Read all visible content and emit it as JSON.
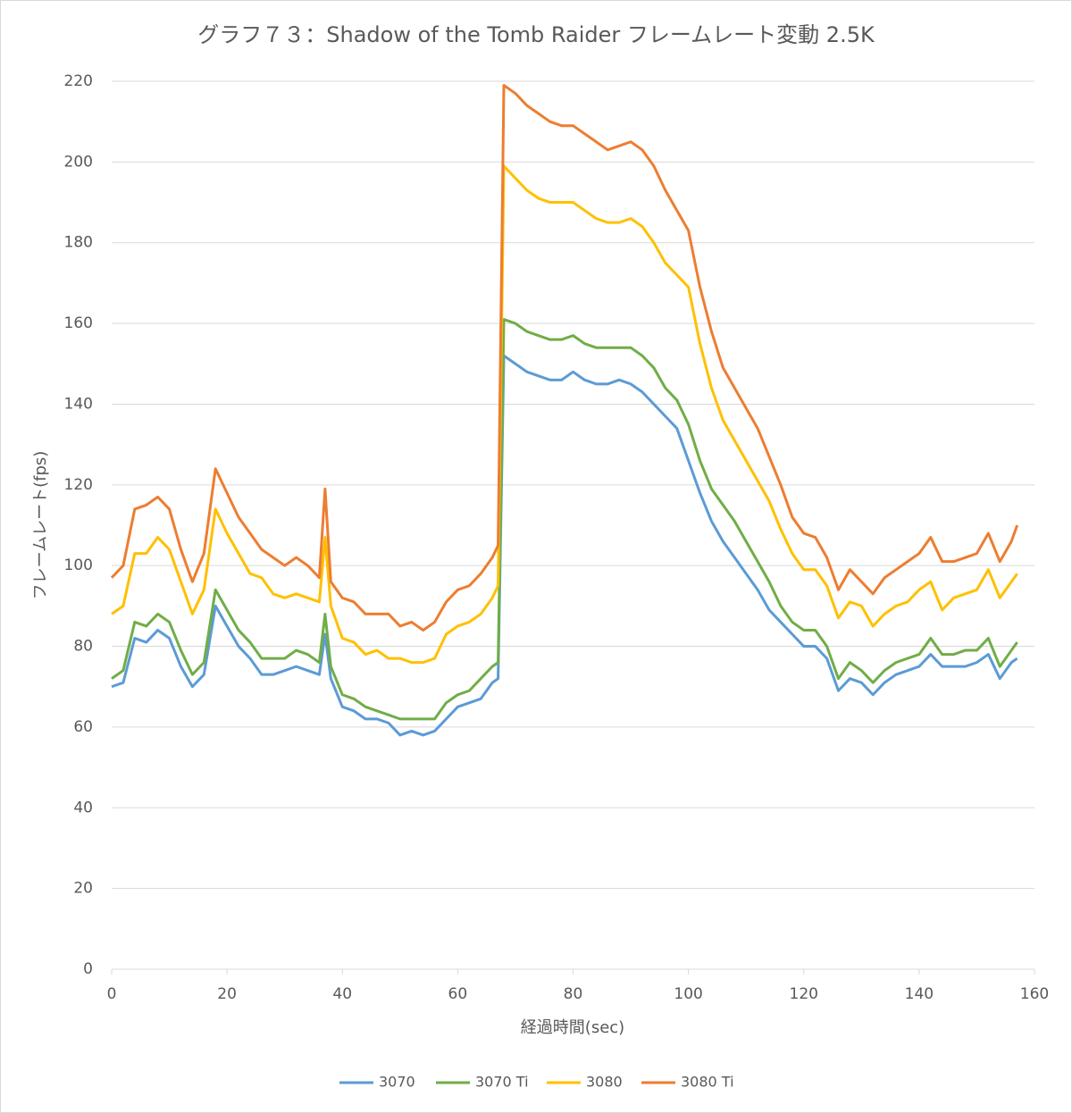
{
  "chart_data": {
    "type": "line",
    "title": "グラフ７３：Shadow of the Tomb Raider フレームレート変動 2.5K",
    "xlabel": "経過時間(sec)",
    "ylabel": "フレームレート(fps)",
    "x": [
      0,
      2,
      4,
      6,
      8,
      10,
      12,
      14,
      16,
      18,
      20,
      22,
      24,
      26,
      28,
      30,
      32,
      34,
      36,
      37,
      38,
      40,
      42,
      44,
      46,
      48,
      50,
      52,
      54,
      56,
      58,
      60,
      62,
      64,
      66,
      67,
      68,
      70,
      72,
      74,
      76,
      78,
      80,
      82,
      84,
      86,
      88,
      90,
      92,
      94,
      96,
      98,
      100,
      102,
      104,
      106,
      108,
      110,
      112,
      114,
      116,
      118,
      120,
      122,
      124,
      126,
      128,
      130,
      132,
      134,
      136,
      138,
      140,
      142,
      144,
      146,
      148,
      150,
      152,
      154,
      156,
      157
    ],
    "series": [
      {
        "name": "3070",
        "color": "#5b9bd5",
        "values": [
          70,
          71,
          82,
          81,
          84,
          82,
          75,
          70,
          73,
          90,
          85,
          80,
          77,
          73,
          73,
          74,
          75,
          74,
          73,
          83,
          72,
          65,
          64,
          62,
          62,
          61,
          58,
          59,
          58,
          59,
          62,
          65,
          66,
          67,
          71,
          72,
          152,
          150,
          148,
          147,
          146,
          146,
          148,
          146,
          145,
          145,
          146,
          145,
          143,
          140,
          137,
          134,
          126,
          118,
          111,
          106,
          102,
          98,
          94,
          89,
          86,
          83,
          80,
          80,
          77,
          69,
          72,
          71,
          68,
          71,
          73,
          74,
          75,
          78,
          75,
          75,
          75,
          76,
          78,
          72,
          76,
          77
        ]
      },
      {
        "name": "3070 Ti",
        "color": "#70ad47",
        "values": [
          72,
          74,
          86,
          85,
          88,
          86,
          79,
          73,
          76,
          94,
          89,
          84,
          81,
          77,
          77,
          77,
          79,
          78,
          76,
          88,
          75,
          68,
          67,
          65,
          64,
          63,
          62,
          62,
          62,
          62,
          66,
          68,
          69,
          72,
          75,
          76,
          161,
          160,
          158,
          157,
          156,
          156,
          157,
          155,
          154,
          154,
          154,
          154,
          152,
          149,
          144,
          141,
          135,
          126,
          119,
          115,
          111,
          106,
          101,
          96,
          90,
          86,
          84,
          84,
          80,
          72,
          76,
          74,
          71,
          74,
          76,
          77,
          78,
          82,
          78,
          78,
          79,
          79,
          82,
          75,
          79,
          81
        ]
      },
      {
        "name": "3080",
        "color": "#ffc000",
        "values": [
          88,
          90,
          103,
          103,
          107,
          104,
          96,
          88,
          94,
          114,
          108,
          103,
          98,
          97,
          93,
          92,
          93,
          92,
          91,
          107,
          90,
          82,
          81,
          78,
          79,
          77,
          77,
          76,
          76,
          77,
          83,
          85,
          86,
          88,
          92,
          95,
          199,
          196,
          193,
          191,
          190,
          190,
          190,
          188,
          186,
          185,
          185,
          186,
          184,
          180,
          175,
          172,
          169,
          155,
          144,
          136,
          131,
          126,
          121,
          116,
          109,
          103,
          99,
          99,
          95,
          87,
          91,
          90,
          85,
          88,
          90,
          91,
          94,
          96,
          89,
          92,
          93,
          94,
          99,
          92,
          96,
          98
        ]
      },
      {
        "name": "3080 Ti",
        "color": "#ed7d31",
        "values": [
          97,
          100,
          114,
          115,
          117,
          114,
          104,
          96,
          103,
          124,
          118,
          112,
          108,
          104,
          102,
          100,
          102,
          100,
          97,
          119,
          96,
          92,
          91,
          88,
          88,
          88,
          85,
          86,
          84,
          86,
          91,
          94,
          95,
          98,
          102,
          105,
          219,
          217,
          214,
          212,
          210,
          209,
          209,
          207,
          205,
          203,
          204,
          205,
          203,
          199,
          193,
          188,
          183,
          169,
          158,
          149,
          144,
          139,
          134,
          127,
          120,
          112,
          108,
          107,
          102,
          94,
          99,
          96,
          93,
          97,
          99,
          101,
          103,
          107,
          101,
          101,
          102,
          103,
          108,
          101,
          106,
          110
        ]
      }
    ],
    "xlim": [
      0,
      160
    ],
    "xticks": [
      0,
      20,
      40,
      60,
      80,
      100,
      120,
      140,
      160
    ],
    "ylim": [
      0,
      220
    ],
    "yticks": [
      0,
      20,
      40,
      60,
      80,
      100,
      120,
      140,
      160,
      180,
      200,
      220
    ],
    "grid": true,
    "legend": "bottom"
  }
}
